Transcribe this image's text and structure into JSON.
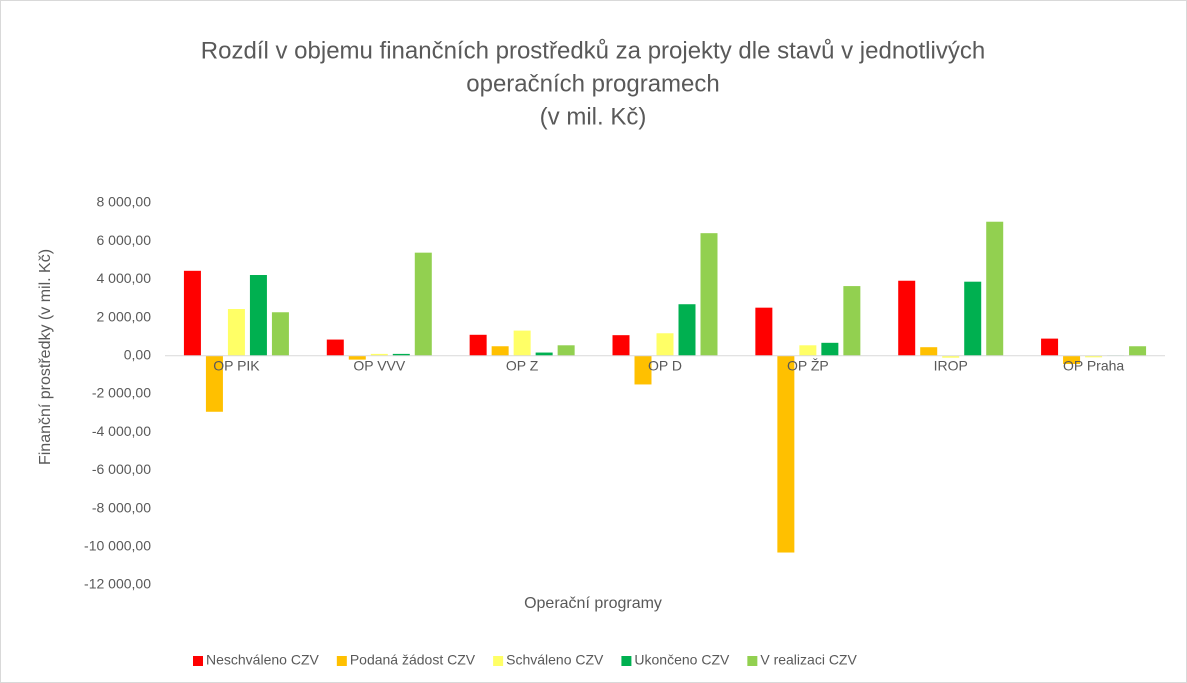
{
  "chart_data": {
    "type": "bar",
    "title": [
      "Rozdíl v objemu finančních prostředků za projekty dle stavů v jednotlivých",
      "operačních programech",
      "(v mil. Kč)"
    ],
    "x_label": "Operační programy",
    "y_label": "Finanční prostředky (v mil. Kč)",
    "categories": [
      "OP PIK",
      "OP VVV",
      "OP Z",
      "OP D",
      "OP ŽP",
      "IROP",
      "OP Praha"
    ],
    "series": [
      {
        "name": "Neschváleno CZV",
        "color": "#ff0000",
        "values": [
          4450,
          850,
          1100,
          1080,
          2520,
          3930,
          900
        ]
      },
      {
        "name": "Podaná žádost CZV",
        "color": "#ffc000",
        "values": [
          -2930,
          -200,
          500,
          -1500,
          -10300,
          450,
          -430
        ]
      },
      {
        "name": "Schváleno CZV",
        "color": "#ffff66",
        "values": [
          2450,
          100,
          1320,
          1180,
          550,
          -100,
          -80
        ]
      },
      {
        "name": "Ukončeno CZV",
        "color": "#00b050",
        "values": [
          4230,
          100,
          170,
          2700,
          680,
          3880,
          20
        ]
      },
      {
        "name": "V realizaci CZV",
        "color": "#92d050",
        "values": [
          2280,
          5400,
          550,
          6420,
          3650,
          7020,
          500
        ]
      }
    ],
    "ylim": [
      -12000,
      8000
    ],
    "yticks": [
      {
        "value": -12000,
        "label": "-12 000,00"
      },
      {
        "value": -10000,
        "label": "-10 000,00"
      },
      {
        "value": -8000,
        "label": "-8 000,00"
      },
      {
        "value": -6000,
        "label": "-6 000,00"
      },
      {
        "value": -4000,
        "label": "-4 000,00"
      },
      {
        "value": -2000,
        "label": "-2 000,00"
      },
      {
        "value": 0,
        "label": "0,00"
      },
      {
        "value": 2000,
        "label": "2 000,00"
      },
      {
        "value": 4000,
        "label": "4 000,00"
      },
      {
        "value": 6000,
        "label": "6 000,00"
      },
      {
        "value": 8000,
        "label": "8 000,00"
      }
    ],
    "grid": false,
    "legend": "bottom"
  }
}
